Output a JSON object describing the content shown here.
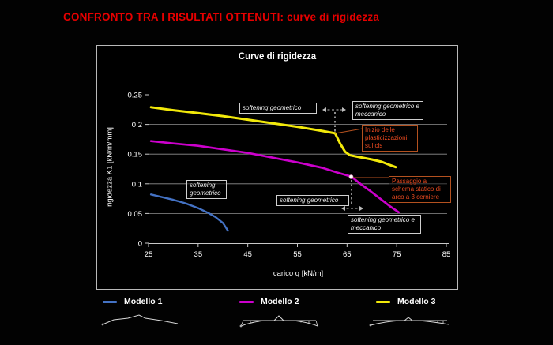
{
  "slide": {
    "title": "CONFRONTO TRA I RISULTATI OTTENUTI: curve di rigidezza",
    "accent_red": "#e60000",
    "background": "#000000"
  },
  "chart": {
    "title": "Curve di rigidezza",
    "xlabel": "carico q [kN/m]",
    "ylabel": "rigidezza K1 [kN/m/mm]"
  },
  "chart_data": {
    "type": "line",
    "title": "Curve di rigidezza",
    "xlabel": "carico q [kN/m]",
    "ylabel": "rigidezza K1 [kN/m/mm]",
    "xlim": [
      25,
      85
    ],
    "ylim": [
      0,
      0.25
    ],
    "x_ticks": [
      25,
      35,
      45,
      55,
      65,
      75,
      85
    ],
    "y_ticks": [
      {
        "v": 0.25,
        "label": "0.25"
      },
      {
        "v": 0.2,
        "label": "0.2"
      },
      {
        "v": 0.15,
        "label": "0.15"
      },
      {
        "v": 0.1,
        "label": "0.1"
      },
      {
        "v": 0.05,
        "label": "0.05"
      },
      {
        "v": 0,
        "label": "0"
      }
    ],
    "gridlines_y": [
      0.05,
      0.1,
      0.15,
      0.2
    ],
    "grid": true,
    "legend_position": "bottom",
    "series": [
      {
        "name": "Modello 1",
        "color": "#4472c4",
        "points": [
          [
            25.5,
            0.082
          ],
          [
            27.5,
            0.078
          ],
          [
            30,
            0.073
          ],
          [
            32.5,
            0.067
          ],
          [
            35,
            0.059
          ],
          [
            37,
            0.051
          ],
          [
            38.5,
            0.044
          ],
          [
            40,
            0.034
          ],
          [
            41,
            0.021
          ]
        ]
      },
      {
        "name": "Modello 2",
        "color": "#cc00cc",
        "points": [
          [
            25.5,
            0.172
          ],
          [
            30,
            0.168
          ],
          [
            35,
            0.164
          ],
          [
            40,
            0.158
          ],
          [
            45,
            0.152
          ],
          [
            50,
            0.144
          ],
          [
            55,
            0.136
          ],
          [
            60,
            0.127
          ],
          [
            63,
            0.119
          ],
          [
            65.9,
            0.112
          ],
          [
            67.5,
            0.101
          ],
          [
            69.5,
            0.089
          ],
          [
            71.5,
            0.076
          ],
          [
            73.5,
            0.063
          ],
          [
            75.4,
            0.052
          ]
        ]
      },
      {
        "name": "Modello 3",
        "color": "#f2e90a",
        "points": [
          [
            25.5,
            0.229
          ],
          [
            30,
            0.224
          ],
          [
            35,
            0.219
          ],
          [
            40,
            0.214
          ],
          [
            45,
            0.208
          ],
          [
            50,
            0.202
          ],
          [
            55,
            0.196
          ],
          [
            60,
            0.189
          ],
          [
            62.6,
            0.185
          ],
          [
            63.6,
            0.168
          ],
          [
            64.6,
            0.154
          ],
          [
            65.6,
            0.148
          ],
          [
            67.5,
            0.145
          ],
          [
            70,
            0.141
          ],
          [
            72,
            0.137
          ],
          [
            73.5,
            0.132
          ],
          [
            74.8,
            0.128
          ]
        ]
      }
    ],
    "events": [
      {
        "label": "Inizio delle plasticizzazioni sul cls",
        "series": "Modello 3",
        "q": 63,
        "K": 0.185
      },
      {
        "label": "Passaggio a schema statico di arco a 3 cerniere",
        "series": "Modello 2",
        "q": 66,
        "K": 0.112
      }
    ]
  },
  "annotations": {
    "softening_geo_top": "softening geometrico",
    "softening_geo_mecc_top": "softening geometrico e meccanico",
    "inizio": "Inizio delle plasticizzazioni sul cls",
    "softening_geo_left": "softening geometrico",
    "softening_geo_mid": "softening geometrico",
    "passaggio": "Passaggio a schema statico di arco a 3 cerniere",
    "softening_geo_mecc_bottom": "softening geometrico e meccanico"
  },
  "legend": {
    "items": [
      {
        "label": "Modello 1",
        "color": "#4472c4"
      },
      {
        "label": "Modello 2",
        "color": "#cc00cc"
      },
      {
        "label": "Modello 3",
        "color": "#f2e90a"
      }
    ]
  }
}
